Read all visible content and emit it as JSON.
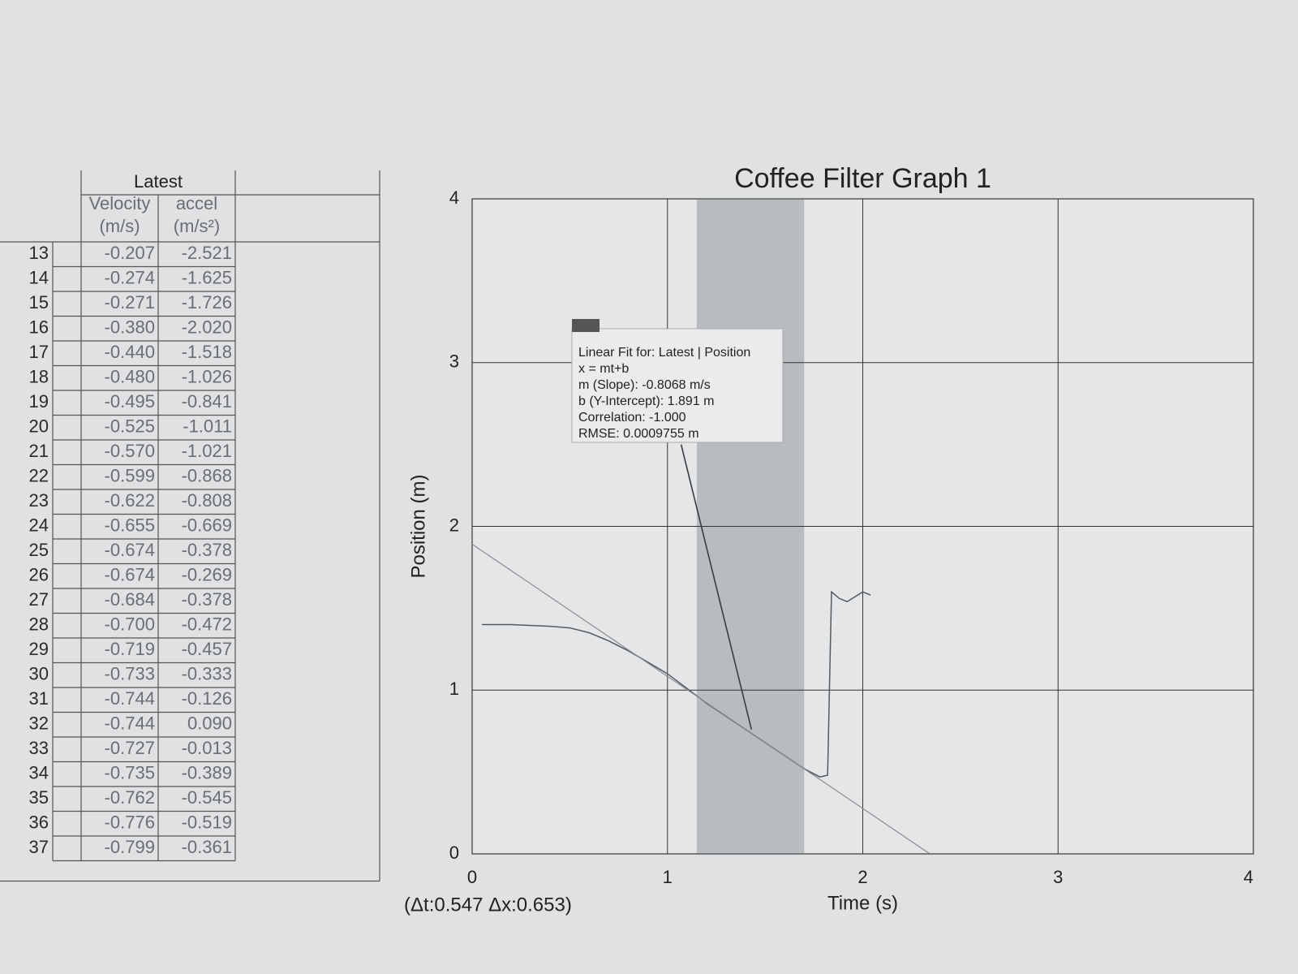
{
  "table": {
    "group": "Latest",
    "columns": [
      [
        "Velocity",
        "(m/s)"
      ],
      [
        "accel",
        "(m/s²)"
      ]
    ],
    "rows": [
      [
        "13",
        "-0.207",
        "-2.521"
      ],
      [
        "14",
        "-0.274",
        "-1.625"
      ],
      [
        "15",
        "-0.271",
        "-1.726"
      ],
      [
        "16",
        "-0.380",
        "-2.020"
      ],
      [
        "17",
        "-0.440",
        "-1.518"
      ],
      [
        "18",
        "-0.480",
        "-1.026"
      ],
      [
        "19",
        "-0.495",
        "-0.841"
      ],
      [
        "20",
        "-0.525",
        "-1.011"
      ],
      [
        "21",
        "-0.570",
        "-1.021"
      ],
      [
        "22",
        "-0.599",
        "-0.868"
      ],
      [
        "23",
        "-0.622",
        "-0.808"
      ],
      [
        "24",
        "-0.655",
        "-0.669"
      ],
      [
        "25",
        "-0.674",
        "-0.378"
      ],
      [
        "26",
        "-0.674",
        "-0.269"
      ],
      [
        "27",
        "-0.684",
        "-0.378"
      ],
      [
        "28",
        "-0.700",
        "-0.472"
      ],
      [
        "29",
        "-0.719",
        "-0.457"
      ],
      [
        "30",
        "-0.733",
        "-0.333"
      ],
      [
        "31",
        "-0.744",
        "-0.126"
      ],
      [
        "32",
        "-0.744",
        "0.090"
      ],
      [
        "33",
        "-0.727",
        "-0.013"
      ],
      [
        "34",
        "-0.735",
        "-0.389"
      ],
      [
        "35",
        "-0.762",
        "-0.545"
      ],
      [
        "36",
        "-0.776",
        "-0.519"
      ],
      [
        "37",
        "-0.799",
        "-0.361"
      ]
    ]
  },
  "chart_data": {
    "type": "line",
    "title": "Coffee Filter Graph 1",
    "xlabel": "Time (s)",
    "ylabel": "Position (m)",
    "xlim": [
      0,
      4
    ],
    "ylim": [
      0,
      4
    ],
    "xticks": [
      0,
      1,
      2,
      3,
      4
    ],
    "yticks": [
      0,
      1,
      2,
      3,
      4
    ],
    "grid": true,
    "shade": [
      1.15,
      1.7
    ],
    "series": [
      {
        "color": "#555a5e",
        "x": [
          0.05,
          0.2,
          0.4,
          0.5,
          0.6,
          0.7,
          0.8,
          0.9,
          1.0,
          1.1,
          1.2,
          1.3,
          1.4,
          1.5,
          1.6,
          1.7,
          1.78,
          1.82,
          1.84,
          1.88,
          1.92,
          1.96,
          2.0,
          2.04
        ],
        "values": [
          1.4,
          1.4,
          1.39,
          1.38,
          1.35,
          1.3,
          1.24,
          1.17,
          1.1,
          1.01,
          0.92,
          0.84,
          0.76,
          0.68,
          0.6,
          0.52,
          0.47,
          0.48,
          1.6,
          1.56,
          1.54,
          1.57,
          1.6,
          1.58
        ]
      },
      {
        "color": "#8a8d90",
        "x": [
          0,
          2.34
        ],
        "values": [
          1.891,
          0.003
        ]
      },
      {
        "color": "#3a3d40",
        "x": [
          1.07,
          1.43
        ],
        "values": [
          2.5,
          0.76
        ]
      }
    ],
    "fit_box": [
      "Linear Fit for: Latest | Position",
      "x = mt+b",
      "m (Slope): -0.8068 m/s",
      "b (Y-Intercept): 1.891 m",
      "Correlation: -1.000",
      "RMSE: 0.0009755 m"
    ],
    "delta_label": "(Δt:0.547 Δx:0.653)"
  }
}
